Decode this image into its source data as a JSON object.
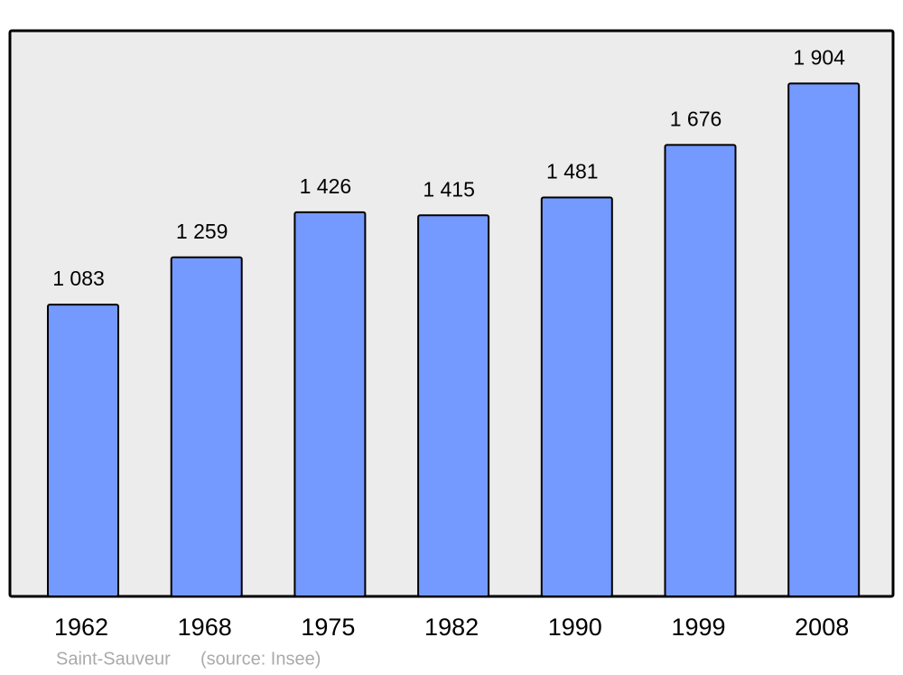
{
  "chart_data": {
    "type": "bar",
    "title": "Saint-Sauveur",
    "source": "(source: Insee)",
    "categories": [
      "1962",
      "1968",
      "1975",
      "1982",
      "1990",
      "1999",
      "2008"
    ],
    "values": [
      1083,
      1259,
      1426,
      1415,
      1481,
      1676,
      1904
    ],
    "value_labels": [
      "1 083",
      "1 259",
      "1 426",
      "1 415",
      "1 481",
      "1 676",
      "1 904"
    ],
    "color": "#7499ff",
    "ylim": [
      0,
      2100
    ]
  }
}
